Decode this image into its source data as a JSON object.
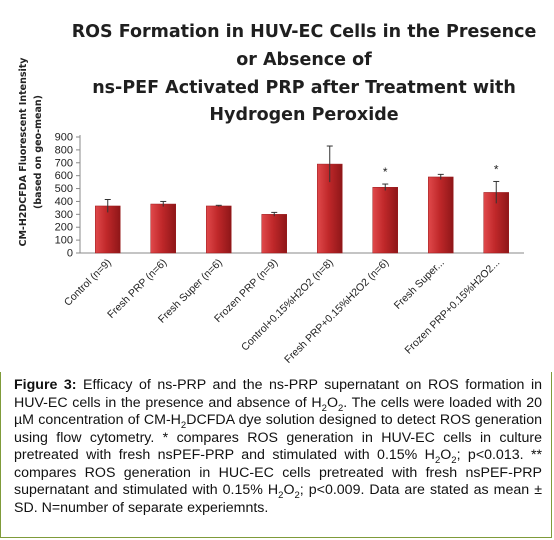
{
  "chart_data": {
    "type": "bar",
    "title_lines": [
      "ROS Formation in HUV-EC Cells in the Presence",
      "or Absence  of",
      "ns-PEF Activated PRP after Treatment with",
      "Hydrogen Peroxide"
    ],
    "ylabel_lines": [
      "CM-H2DCFDA Fluorescent Intensity",
      "(based on geo-mean)"
    ],
    "xlabel": "",
    "ylim": [
      0,
      900
    ],
    "yticks": [
      0,
      100,
      200,
      300,
      400,
      500,
      600,
      700,
      800,
      900
    ],
    "categories": [
      "Control (n=9)",
      "Fresh PRP (n=6)",
      "Fresh Super (n=6)",
      "Frozen PRP (n=9)",
      "Control+0.15%H2O2 (n=8)",
      "Fresh PRP+0.15%H2O2 (n=6)",
      "Fresh Super...",
      "Frozen PRP+0.15%H2O2..."
    ],
    "values": [
      365,
      380,
      365,
      300,
      690,
      510,
      590,
      470
    ],
    "errors": [
      50,
      20,
      5,
      15,
      140,
      25,
      20,
      85
    ],
    "annotations": [
      {
        "category_index": 5,
        "text": "*"
      },
      {
        "category_index": 7,
        "text": "*"
      }
    ],
    "bar_color": "#c0282a",
    "grid": false,
    "legend": "none"
  },
  "caption": {
    "label": "Figure 3:",
    "segments": [
      " Efficacy of ns-PRP and the ns-PRP supernatant on ROS formation in HUV-EC cells in the presence and absence of H",
      "2",
      "O",
      "2",
      ".  The cells were loaded with 20 µM concentration of CM-H",
      "2",
      "DCFDA dye solution designed to detect ROS generation using flow cytometry. * compares ROS generation in HUV-EC cells in culture  pretreated with fresh nsPEF-PRP and stimulated with 0.15% H",
      "2",
      "O",
      "2",
      "; p<0.013. ** compares ROS generation in HUC-EC cells  pretreated with fresh nsPEF-PRP supernatant and stimulated with 0.15% H",
      "2",
      "O",
      "2",
      "; p<0.009. Data are stated as mean ± SD. N=number of separate experiemnts."
    ]
  }
}
